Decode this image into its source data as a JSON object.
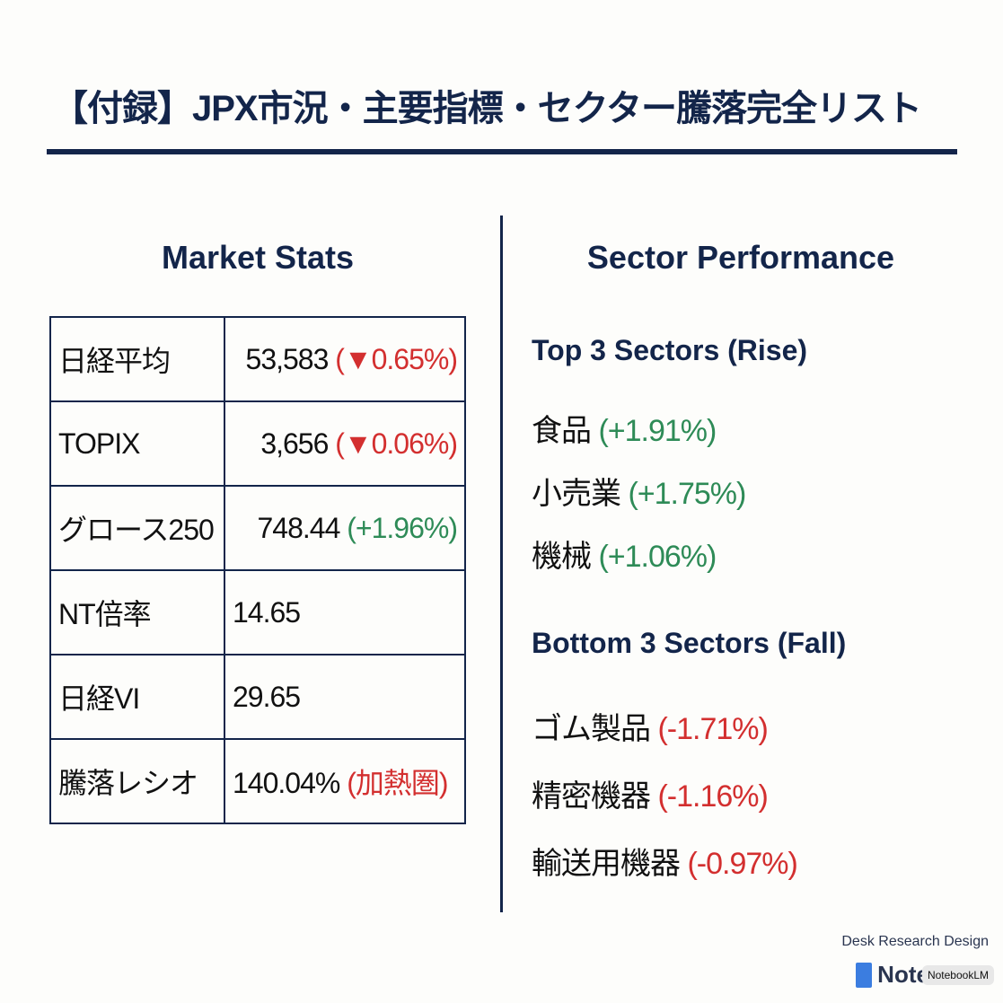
{
  "title": "【付録】JPX市況・主要指標・セクター騰落完全リスト",
  "market_stats": {
    "heading": "Market Stats",
    "rows": [
      {
        "label": "日経平均",
        "value": "53,583",
        "change": "(▼0.65%)",
        "change_color": "red"
      },
      {
        "label": "TOPIX",
        "value": "3,656",
        "change": "(▼0.06%)",
        "change_color": "red"
      },
      {
        "label": "グロース250",
        "value": "748.44",
        "change": "(+1.96%)",
        "change_color": "green"
      },
      {
        "label": "NT倍率",
        "value": "14.65",
        "change": ""
      },
      {
        "label": "日経VI",
        "value": "29.65",
        "change": ""
      },
      {
        "label": "騰落レシオ",
        "value": "140.04%",
        "change": "(加熱圏)",
        "change_color": "red"
      }
    ]
  },
  "sector_performance": {
    "heading": "Sector Performance",
    "top_heading": "Top 3 Sectors (Rise)",
    "top": [
      {
        "name": "食品",
        "change": "(+1.91%)"
      },
      {
        "name": "小売業",
        "change": "(+1.75%)"
      },
      {
        "name": "機械",
        "change": "(+1.06%)"
      }
    ],
    "bottom_heading": "Bottom 3 Sectors (Fall)",
    "bottom": [
      {
        "name": "ゴム製品",
        "change": "(-1.71%)"
      },
      {
        "name": "精密機器",
        "change": "(-1.16%)"
      },
      {
        "name": "輸送用機器",
        "change": "(-0.97%)"
      }
    ]
  },
  "footer": {
    "brand": "Desk Research Design",
    "logo_text": "Note",
    "watermark": "NotebookLM"
  },
  "colors": {
    "navy": "#13254a",
    "red": "#d32f2f",
    "green": "#2e8b57"
  }
}
